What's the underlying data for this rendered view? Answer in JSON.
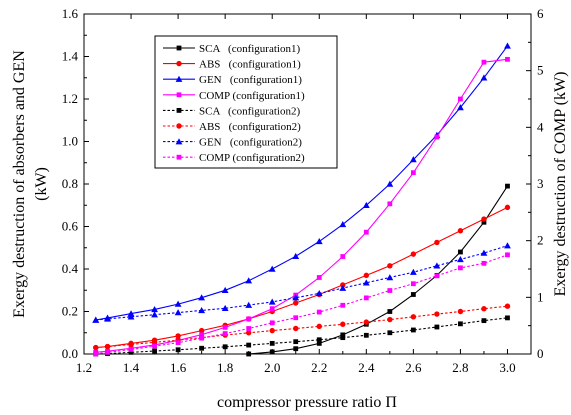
{
  "chart_data": {
    "type": "line",
    "xlabel": "compressor pressure ratio Π",
    "ylabel_left": [
      "Exergy destruction of absorbers and GEN",
      "(kW)"
    ],
    "ylabel_right": "Exergy destruction of COMP (kW)",
    "xlim": [
      1.2,
      3.1
    ],
    "ylim_left": [
      0,
      1.6
    ],
    "ylim_right": [
      0,
      6
    ],
    "x_ticks": [
      "1.2",
      "1.4",
      "1.6",
      "1.8",
      "2.0",
      "2.2",
      "2.4",
      "2.6",
      "2.8",
      "3.0"
    ],
    "y_ticks_left": [
      "0.0",
      "0.2",
      "0.4",
      "0.6",
      "0.8",
      "1.0",
      "1.2",
      "1.4",
      "1.6"
    ],
    "y_ticks_right": [
      "0",
      "1",
      "2",
      "3",
      "4",
      "5",
      "6"
    ],
    "legend_position": "top-center",
    "series": [
      {
        "name": "SCA   (configuration1)",
        "axis": "left",
        "color": "#000000",
        "marker": "square",
        "dashed": false,
        "x": [
          1.9,
          2.0,
          2.1,
          2.2,
          2.3,
          2.4,
          2.5,
          2.6,
          2.7,
          2.8,
          2.9,
          3.0
        ],
        "y": [
          0.0,
          0.01,
          0.025,
          0.05,
          0.09,
          0.14,
          0.2,
          0.28,
          0.37,
          0.48,
          0.62,
          0.79
        ]
      },
      {
        "name": "ABS   (configuration1)",
        "axis": "left",
        "color": "#ff0000",
        "marker": "circle",
        "dashed": false,
        "x": [
          1.25,
          1.3,
          1.4,
          1.5,
          1.6,
          1.7,
          1.8,
          1.9,
          2.0,
          2.1,
          2.2,
          2.3,
          2.4,
          2.5,
          2.6,
          2.7,
          2.8,
          2.9,
          3.0
        ],
        "y": [
          0.03,
          0.035,
          0.05,
          0.065,
          0.085,
          0.11,
          0.135,
          0.165,
          0.2,
          0.24,
          0.28,
          0.325,
          0.37,
          0.415,
          0.47,
          0.525,
          0.58,
          0.635,
          0.69
        ]
      },
      {
        "name": "GEN   (configuration1)",
        "axis": "left",
        "color": "#0000ff",
        "marker": "triangle",
        "dashed": false,
        "x": [
          1.25,
          1.3,
          1.4,
          1.5,
          1.6,
          1.7,
          1.8,
          1.9,
          2.0,
          2.1,
          2.2,
          2.3,
          2.4,
          2.5,
          2.6,
          2.7,
          2.8,
          2.9,
          3.0
        ],
        "y": [
          0.16,
          0.17,
          0.19,
          0.21,
          0.235,
          0.265,
          0.3,
          0.345,
          0.4,
          0.46,
          0.53,
          0.61,
          0.7,
          0.8,
          0.915,
          1.03,
          1.16,
          1.3,
          1.45
        ]
      },
      {
        "name": "COMP (configuration1)",
        "axis": "right",
        "color": "#ff00ff",
        "marker": "square",
        "dashed": false,
        "x": [
          1.25,
          1.3,
          1.4,
          1.5,
          1.6,
          1.7,
          1.8,
          1.9,
          2.0,
          2.1,
          2.2,
          2.3,
          2.4,
          2.5,
          2.6,
          2.7,
          2.8,
          2.9,
          3.0
        ],
        "y": [
          0.03,
          0.05,
          0.1,
          0.16,
          0.24,
          0.34,
          0.47,
          0.62,
          0.8,
          1.04,
          1.35,
          1.72,
          2.15,
          2.65,
          3.2,
          3.83,
          4.5,
          5.15,
          5.2
        ]
      },
      {
        "name": "SCA   (configuration2)",
        "axis": "left",
        "color": "#000000",
        "marker": "square",
        "dashed": true,
        "x": [
          1.25,
          1.3,
          1.4,
          1.5,
          1.6,
          1.7,
          1.8,
          1.9,
          2.0,
          2.1,
          2.2,
          2.3,
          2.4,
          2.5,
          2.6,
          2.7,
          2.8,
          2.9,
          3.0
        ],
        "y": [
          0.0,
          0.002,
          0.008,
          0.014,
          0.02,
          0.027,
          0.034,
          0.042,
          0.05,
          0.058,
          0.067,
          0.077,
          0.088,
          0.1,
          0.113,
          0.127,
          0.142,
          0.157,
          0.17
        ]
      },
      {
        "name": "ABS   (configuration2)",
        "axis": "left",
        "color": "#ff0000",
        "marker": "circle",
        "dashed": true,
        "x": [
          1.25,
          1.3,
          1.4,
          1.5,
          1.6,
          1.7,
          1.8,
          1.9,
          2.0,
          2.1,
          2.2,
          2.3,
          2.4,
          2.5,
          2.6,
          2.7,
          2.8,
          2.9,
          3.0
        ],
        "y": [
          0.03,
          0.035,
          0.045,
          0.055,
          0.065,
          0.077,
          0.089,
          0.1,
          0.11,
          0.12,
          0.13,
          0.14,
          0.15,
          0.162,
          0.175,
          0.188,
          0.2,
          0.213,
          0.225
        ]
      },
      {
        "name": "GEN   (configuration2)",
        "axis": "left",
        "color": "#0000ff",
        "marker": "triangle",
        "dashed": true,
        "x": [
          1.25,
          1.3,
          1.4,
          1.5,
          1.6,
          1.7,
          1.8,
          1.9,
          2.0,
          2.1,
          2.2,
          2.3,
          2.4,
          2.5,
          2.6,
          2.7,
          2.8,
          2.9,
          3.0
        ],
        "y": [
          0.16,
          0.165,
          0.175,
          0.185,
          0.195,
          0.205,
          0.215,
          0.23,
          0.245,
          0.265,
          0.285,
          0.31,
          0.335,
          0.36,
          0.385,
          0.415,
          0.445,
          0.475,
          0.51
        ]
      },
      {
        "name": "COMP (configuration2)",
        "axis": "right",
        "color": "#ff00ff",
        "marker": "square",
        "dashed": true,
        "x": [
          1.25,
          1.3,
          1.4,
          1.5,
          1.6,
          1.7,
          1.8,
          1.9,
          2.0,
          2.1,
          2.2,
          2.3,
          2.4,
          2.5,
          2.6,
          2.7,
          2.8,
          2.9,
          3.0
        ],
        "y": [
          0.0,
          0.03,
          0.08,
          0.14,
          0.2,
          0.28,
          0.36,
          0.45,
          0.55,
          0.64,
          0.74,
          0.86,
          0.99,
          1.12,
          1.24,
          1.38,
          1.52,
          1.6,
          1.75
        ]
      }
    ]
  }
}
